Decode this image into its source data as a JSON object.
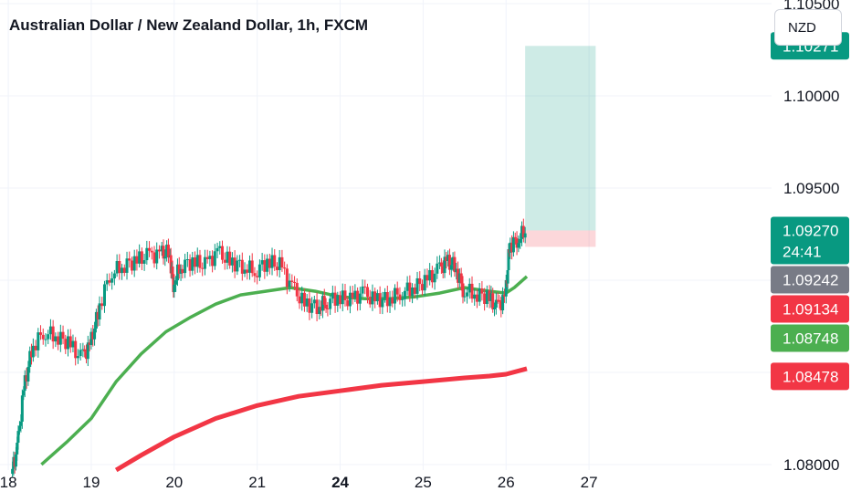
{
  "chart_data": {
    "type": "candlestick",
    "title": "Australian Dollar / New Zealand Dollar, 1h, FXCM",
    "currency": "NZD",
    "ylim": [
      1.0797,
      1.1052
    ],
    "xlim": [
      17.9,
      27.2
    ],
    "y_ticks": [
      "1.10500",
      "1.10000",
      "1.09500",
      "1.08000"
    ],
    "y_tick_values": [
      1.105,
      1.1,
      1.095,
      1.08
    ],
    "grid_values": [
      1.105,
      1.1,
      1.095,
      1.09,
      1.085,
      1.08
    ],
    "x_ticks": [
      {
        "label": "18",
        "day": 18,
        "bold": false
      },
      {
        "label": "19",
        "day": 19,
        "bold": false
      },
      {
        "label": "20",
        "day": 20,
        "bold": false
      },
      {
        "label": "21",
        "day": 21,
        "bold": false
      },
      {
        "label": "24",
        "day": 22,
        "bold": true
      },
      {
        "label": "25",
        "day": 23,
        "bold": false
      },
      {
        "label": "26",
        "day": 24,
        "bold": false
      },
      {
        "label": "27",
        "day": 25,
        "bold": false
      }
    ],
    "price_points": [
      [
        18.05,
        1.0795
      ],
      [
        18.12,
        1.0808
      ],
      [
        18.2,
        1.084
      ],
      [
        18.3,
        1.0862
      ],
      [
        18.45,
        1.0872
      ],
      [
        18.6,
        1.087
      ],
      [
        18.75,
        1.0866
      ],
      [
        18.9,
        1.0858
      ],
      [
        19.0,
        1.0864
      ],
      [
        19.1,
        1.0882
      ],
      [
        19.25,
        1.0903
      ],
      [
        19.4,
        1.0908
      ],
      [
        19.55,
        1.091
      ],
      [
        19.7,
        1.0913
      ],
      [
        19.85,
        1.0914
      ],
      [
        19.95,
        1.0915
      ],
      [
        20.0,
        1.0898
      ],
      [
        20.1,
        1.0908
      ],
      [
        20.25,
        1.091
      ],
      [
        20.4,
        1.0908
      ],
      [
        20.55,
        1.0915
      ],
      [
        20.7,
        1.091
      ],
      [
        20.85,
        1.0908
      ],
      [
        21.0,
        1.0905
      ],
      [
        21.15,
        1.091
      ],
      [
        21.3,
        1.0908
      ],
      [
        21.45,
        1.0896
      ],
      [
        21.6,
        1.0887
      ],
      [
        21.75,
        1.0886
      ],
      [
        21.85,
        1.0888
      ],
      [
        22.0,
        1.0891
      ],
      [
        22.15,
        1.0889
      ],
      [
        22.3,
        1.0893
      ],
      [
        22.45,
        1.0889
      ],
      [
        22.6,
        1.089
      ],
      [
        22.75,
        1.0893
      ],
      [
        22.9,
        1.0896
      ],
      [
        23.05,
        1.0899
      ],
      [
        23.2,
        1.0905
      ],
      [
        23.3,
        1.091
      ],
      [
        23.4,
        1.0908
      ],
      [
        23.5,
        1.0895
      ],
      [
        23.65,
        1.0893
      ],
      [
        23.8,
        1.0891
      ],
      [
        23.9,
        1.0885
      ],
      [
        24.0,
        1.089
      ],
      [
        24.05,
        1.0918
      ],
      [
        24.15,
        1.0922
      ],
      [
        24.25,
        1.0927
      ]
    ],
    "series": [
      {
        "name": "",
        "color": "#4caf50",
        "points": [
          [
            18.4,
            1.08
          ],
          [
            18.7,
            1.0812
          ],
          [
            19.0,
            1.0825
          ],
          [
            19.3,
            1.0845
          ],
          [
            19.6,
            1.086
          ],
          [
            19.9,
            1.0872
          ],
          [
            20.2,
            1.088
          ],
          [
            20.5,
            1.0887
          ],
          [
            20.8,
            1.0892
          ],
          [
            21.1,
            1.0894
          ],
          [
            21.4,
            1.0896
          ],
          [
            21.7,
            1.0894
          ],
          [
            22.0,
            1.0891
          ],
          [
            22.3,
            1.089
          ],
          [
            22.6,
            1.089
          ],
          [
            22.9,
            1.0891
          ],
          [
            23.2,
            1.0893
          ],
          [
            23.5,
            1.0896
          ],
          [
            23.8,
            1.0894
          ],
          [
            24.0,
            1.0893
          ],
          [
            24.1,
            1.0896
          ],
          [
            24.25,
            1.0902
          ]
        ]
      },
      {
        "name": "",
        "color": "#f23645",
        "points": [
          [
            19.3,
            1.0797
          ],
          [
            19.6,
            1.0805
          ],
          [
            20.0,
            1.0815
          ],
          [
            20.5,
            1.0825
          ],
          [
            21.0,
            1.0832
          ],
          [
            21.5,
            1.0837
          ],
          [
            22.0,
            1.084
          ],
          [
            22.5,
            1.0843
          ],
          [
            23.0,
            1.0845
          ],
          [
            23.5,
            1.0847
          ],
          [
            23.8,
            1.0848
          ],
          [
            24.0,
            1.0849
          ],
          [
            24.25,
            1.0852
          ]
        ]
      }
    ],
    "position": {
      "entry": 1.0927,
      "target": 1.10271,
      "stop": 1.09224,
      "x_start": 24.23,
      "x_end": 25.08
    },
    "price_tags": [
      {
        "label": "1.10271",
        "sub": "",
        "value": 1.10271,
        "color": "#089981"
      },
      {
        "label": "1.09270",
        "sub": "24:41",
        "value": 1.0927,
        "color": "#089981"
      },
      {
        "label": "1.09242",
        "sub": "",
        "value": 1.09242,
        "color": "#787b86"
      },
      {
        "label": "1.09134",
        "sub": "",
        "value": 1.09134,
        "color": "#f23645"
      },
      {
        "label": "1.08748",
        "sub": "",
        "value": 1.08748,
        "color": "#4caf50"
      },
      {
        "label": "1.08478",
        "sub": "",
        "value": 1.08478,
        "color": "#f23645"
      }
    ]
  }
}
